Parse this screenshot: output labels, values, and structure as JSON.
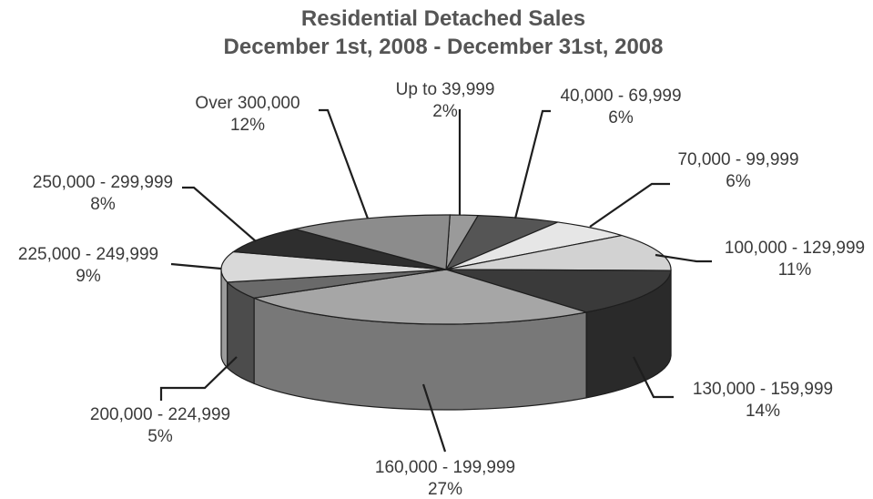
{
  "chart_data": {
    "type": "pie",
    "title": "Residential Detached Sales",
    "subtitle": "December 1st, 2008 - December 31st, 2008",
    "slices": [
      {
        "label": "Up to 39,999",
        "value": 2,
        "display": "2%",
        "color": "#9a9a9a"
      },
      {
        "label": "40,000 - 69,999",
        "value": 6,
        "display": "6%",
        "color": "#555555"
      },
      {
        "label": "70,000 - 99,999",
        "value": 6,
        "display": "6%",
        "color": "#e6e6e6"
      },
      {
        "label": "100,000 - 129,999",
        "value": 11,
        "display": "11%",
        "color": "#d2d2d2"
      },
      {
        "label": "130,000 - 159,999",
        "value": 14,
        "display": "14%",
        "color": "#3a3a3a"
      },
      {
        "label": "160,000 - 199,999",
        "value": 27,
        "display": "27%",
        "color": "#a6a6a6"
      },
      {
        "label": "200,000 - 224,999",
        "value": 5,
        "display": "5%",
        "color": "#6a6a6a"
      },
      {
        "label": "225,000 - 249,999",
        "value": 9,
        "display": "9%",
        "color": "#d9d9d9"
      },
      {
        "label": "250,000 - 299,999",
        "value": 8,
        "display": "8%",
        "color": "#2e2e2e"
      },
      {
        "label": "Over 300,000",
        "value": 12,
        "display": "12%",
        "color": "#8c8c8c"
      }
    ]
  }
}
